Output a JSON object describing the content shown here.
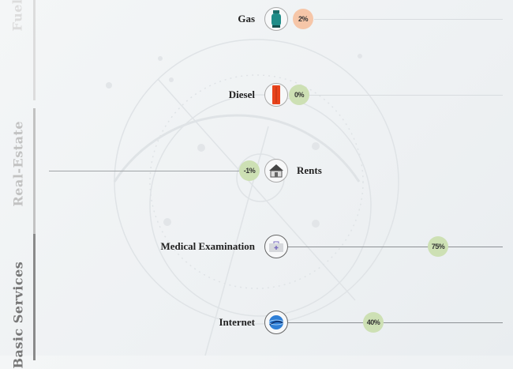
{
  "sections": [
    {
      "label": "Fuel",
      "color": "#dcdcdc"
    },
    {
      "label": "Real-Estate",
      "color": "#c2c2c2"
    },
    {
      "label": "Basic Services",
      "color": "#7a7a7a"
    }
  ],
  "items": [
    {
      "label": "Gas",
      "value": "2%",
      "icon": "gas-cylinder-icon",
      "badge_color": "#f6c6a8"
    },
    {
      "label": "Diesel",
      "value": "0%",
      "icon": "diesel-canister-icon",
      "badge_color": "#cde0b4"
    },
    {
      "label": "Rents",
      "value": "-1%",
      "icon": "house-icon",
      "badge_color": "#cde0b4"
    },
    {
      "label": "Medical Examination",
      "value": "75%",
      "icon": "medical-kit-icon",
      "badge_color": "#cde0b4"
    },
    {
      "label": "Internet",
      "value": "40%",
      "icon": "globe-icon",
      "badge_color": "#cde0b4"
    }
  ]
}
